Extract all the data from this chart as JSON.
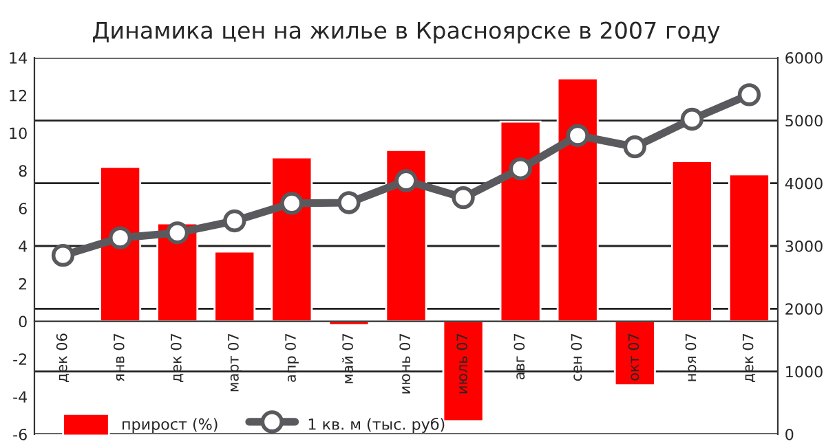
{
  "chart_data": {
    "type": "bar",
    "title": "Динамика цен на жилье в Красноярске в 2007 году",
    "categories": [
      "дек 06",
      "янв 07",
      "дек 07",
      "март 07",
      "апр 07",
      "май 07",
      "июнь 07",
      "июль 07",
      "авг 07",
      "сен 07",
      "окт 07",
      "ноя 07",
      "дек 07"
    ],
    "series": [
      {
        "name": "прирост (%)",
        "color": "#ff0000",
        "values": [
          null,
          8.2,
          5.2,
          3.7,
          8.7,
          -0.2,
          9.1,
          -5.3,
          10.6,
          12.9,
          -3.4,
          8.5,
          7.8
        ]
      },
      {
        "name": "1 кв. м (тыс. руб)",
        "type": "line",
        "axis": "y2",
        "color": "#5a5a5e",
        "values": [
          2850,
          3130,
          3210,
          3400,
          3680,
          3690,
          4040,
          3770,
          4230,
          4760,
          4580,
          5020,
          5410
        ]
      }
    ],
    "ylim": [
      -6,
      14
    ],
    "yticks": [
      -6,
      -4,
      -2,
      0,
      2,
      4,
      6,
      8,
      10,
      12,
      14
    ],
    "y2lim": [
      0,
      6000
    ],
    "y2ticks": [
      0,
      1000,
      2000,
      3000,
      4000,
      5000,
      6000
    ],
    "grid": true,
    "legend": "bottom left",
    "marker": "circle",
    "line_style": "solid"
  }
}
